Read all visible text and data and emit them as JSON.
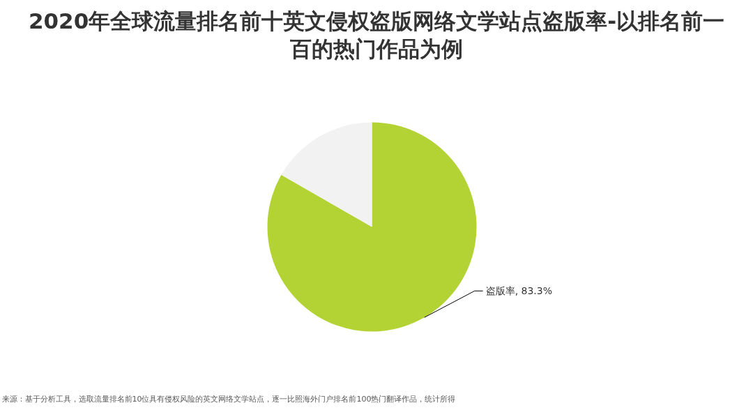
{
  "chart_data": {
    "type": "pie",
    "title": "2020年全球流量排名前十英文侵权盗版网络文学站点盗版率-以排名前一百的热门作品为例",
    "categories": [
      "盗版率",
      null
    ],
    "values": [
      83.3,
      16.7
    ],
    "colors": [
      "#b3d334",
      "#f2f2f2"
    ],
    "value_labels": [
      "83.3%",
      null
    ],
    "annotations": [
      "来源：基于分析工具，选取流量排名前10位具有侵权风险的英文网络文学站点，逐一比照海外门户排名前100热门翻译作品，统计所得"
    ]
  }
}
